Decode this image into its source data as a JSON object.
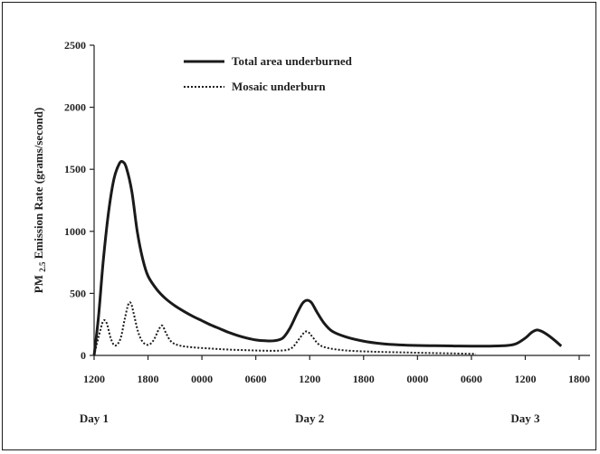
{
  "chart_data": {
    "type": "line",
    "ylabel": "PM 2.5 Emission Rate (grams/second)",
    "ylabel_main": "PM",
    "ylabel_sub": "2.5",
    "ylabel_rest": "Emission Rate (grams/second)",
    "ylim": [
      0,
      2500
    ],
    "yticks": [
      0,
      500,
      1000,
      1500,
      2000,
      2500
    ],
    "xlim": [
      0,
      54
    ],
    "xticks": [
      {
        "x": 0,
        "label": "1200"
      },
      {
        "x": 6,
        "label": "1800"
      },
      {
        "x": 12,
        "label": "0000"
      },
      {
        "x": 18,
        "label": "0600"
      },
      {
        "x": 24,
        "label": "1200"
      },
      {
        "x": 30,
        "label": "1800"
      },
      {
        "x": 36,
        "label": "0000"
      },
      {
        "x": 42,
        "label": "0600"
      },
      {
        "x": 48,
        "label": "1200"
      },
      {
        "x": 54,
        "label": "1800"
      }
    ],
    "day_labels": [
      {
        "x": 0,
        "label": "Day 1"
      },
      {
        "x": 24,
        "label": "Day 2"
      },
      {
        "x": 48,
        "label": "Day 3"
      }
    ],
    "legend_position": "top-center",
    "grid": false,
    "series": [
      {
        "name": "Total area underburned",
        "style": "solid",
        "color": "#1a1a1a",
        "points": [
          [
            0,
            0
          ],
          [
            0.5,
            320
          ],
          [
            1,
            750
          ],
          [
            1.6,
            1150
          ],
          [
            2.2,
            1420
          ],
          [
            2.8,
            1545
          ],
          [
            3.2,
            1560
          ],
          [
            3.6,
            1510
          ],
          [
            4.2,
            1320
          ],
          [
            4.8,
            1000
          ],
          [
            5.4,
            780
          ],
          [
            6,
            640
          ],
          [
            7,
            530
          ],
          [
            8,
            455
          ],
          [
            9,
            400
          ],
          [
            10,
            355
          ],
          [
            11,
            315
          ],
          [
            12,
            280
          ],
          [
            13,
            245
          ],
          [
            14,
            215
          ],
          [
            15,
            185
          ],
          [
            16,
            160
          ],
          [
            17,
            140
          ],
          [
            18,
            125
          ],
          [
            19,
            118
          ],
          [
            20,
            118
          ],
          [
            21,
            140
          ],
          [
            21.8,
            220
          ],
          [
            22.6,
            340
          ],
          [
            23.2,
            420
          ],
          [
            23.7,
            445
          ],
          [
            24.2,
            425
          ],
          [
            24.8,
            350
          ],
          [
            25.6,
            260
          ],
          [
            26.5,
            195
          ],
          [
            28,
            150
          ],
          [
            30,
            115
          ],
          [
            32,
            95
          ],
          [
            34,
            85
          ],
          [
            36,
            80
          ],
          [
            38,
            78
          ],
          [
            40,
            76
          ],
          [
            42,
            75
          ],
          [
            44,
            75
          ],
          [
            46,
            80
          ],
          [
            47,
            95
          ],
          [
            48,
            140
          ],
          [
            48.7,
            185
          ],
          [
            49.3,
            205
          ],
          [
            49.8,
            195
          ],
          [
            50.5,
            165
          ],
          [
            51.3,
            120
          ],
          [
            52,
            75
          ]
        ]
      },
      {
        "name": "Mosaic underburn",
        "style": "dotted",
        "color": "#1a1a1a",
        "points": [
          [
            0,
            0
          ],
          [
            0.5,
            150
          ],
          [
            1,
            275
          ],
          [
            1.4,
            260
          ],
          [
            1.8,
            150
          ],
          [
            2.2,
            85
          ],
          [
            2.6,
            90
          ],
          [
            3,
            150
          ],
          [
            3.4,
            290
          ],
          [
            3.8,
            410
          ],
          [
            4.1,
            420
          ],
          [
            4.4,
            340
          ],
          [
            4.9,
            190
          ],
          [
            5.4,
            110
          ],
          [
            6,
            85
          ],
          [
            6.6,
            120
          ],
          [
            7.2,
            210
          ],
          [
            7.6,
            240
          ],
          [
            8,
            180
          ],
          [
            8.6,
            110
          ],
          [
            9.5,
            80
          ],
          [
            11,
            65
          ],
          [
            13,
            55
          ],
          [
            15,
            47
          ],
          [
            17,
            42
          ],
          [
            19,
            38
          ],
          [
            21,
            40
          ],
          [
            22,
            60
          ],
          [
            22.8,
            130
          ],
          [
            23.4,
            185
          ],
          [
            23.8,
            190
          ],
          [
            24.3,
            150
          ],
          [
            25,
            90
          ],
          [
            26,
            60
          ],
          [
            28,
            40
          ],
          [
            31,
            30
          ],
          [
            34,
            25
          ],
          [
            37,
            20
          ],
          [
            40,
            16
          ],
          [
            42.5,
            12
          ]
        ]
      }
    ]
  }
}
